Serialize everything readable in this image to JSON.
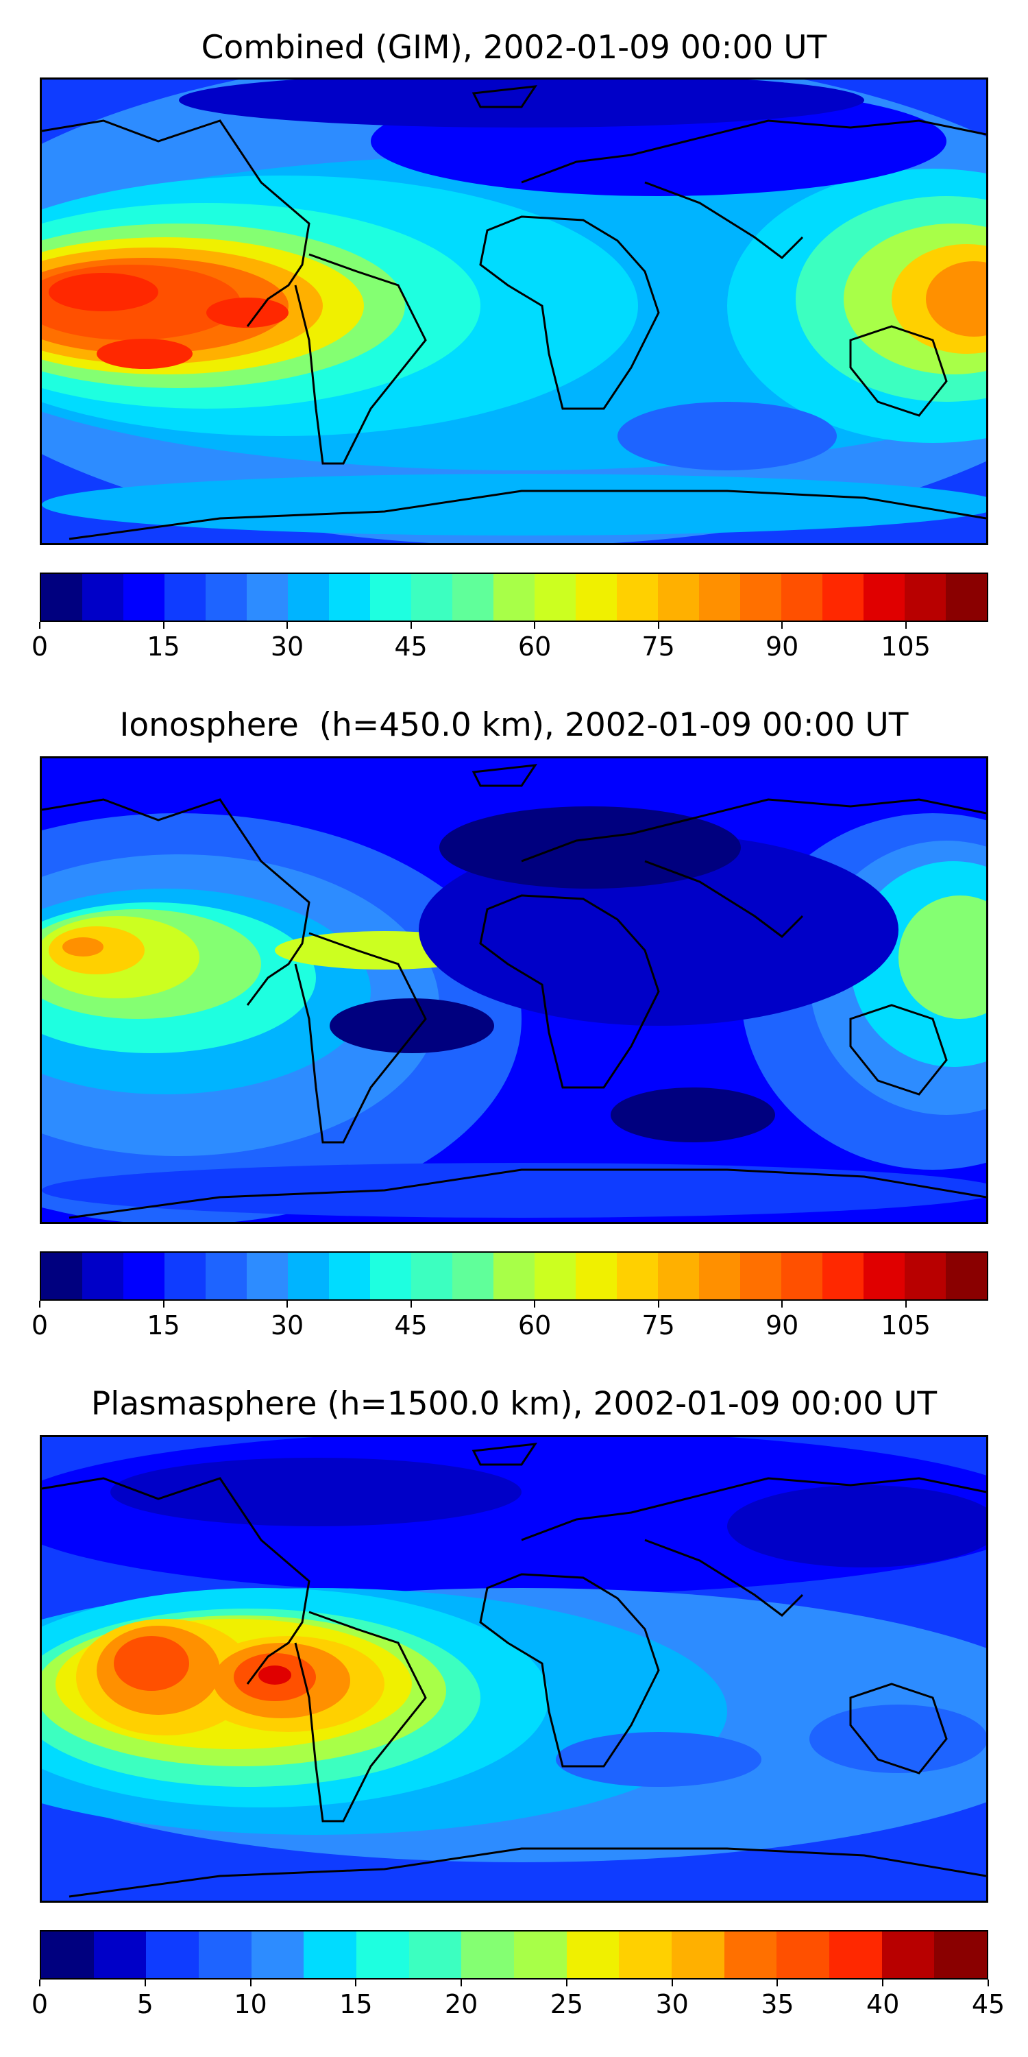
{
  "panels": [
    {
      "title": "Combined (GIM), 2002-01-09 00:00 UT",
      "colorbar": {
        "min": 0,
        "max": 115,
        "levels": 23,
        "tick_values": [
          0,
          15,
          30,
          45,
          60,
          75,
          90,
          105
        ],
        "ticks": [
          "0",
          "15",
          "30",
          "45",
          "60",
          "75",
          "90",
          "105"
        ]
      }
    },
    {
      "title": "Ionosphere  (h=450.0 km), 2002-01-09 00:00 UT",
      "colorbar": {
        "min": 0,
        "max": 115,
        "levels": 23,
        "tick_values": [
          0,
          15,
          30,
          45,
          60,
          75,
          90,
          105
        ],
        "ticks": [
          "0",
          "15",
          "30",
          "45",
          "60",
          "75",
          "90",
          "105"
        ]
      }
    },
    {
      "title": "Plasmasphere (h=1500.0 km), 2002-01-09 00:00 UT",
      "colorbar": {
        "min": 0,
        "max": 45,
        "levels": 18,
        "tick_values": [
          0,
          5,
          10,
          15,
          20,
          25,
          30,
          35,
          40,
          45
        ],
        "ticks": [
          "0",
          "5",
          "10",
          "15",
          "20",
          "25",
          "30",
          "35",
          "40",
          "45"
        ]
      }
    }
  ],
  "colormap": "jet",
  "colormap_colors": [
    "#00007f",
    "#0000c8",
    "#0000ff",
    "#0f3cff",
    "#1e64ff",
    "#2d8cff",
    "#00b4ff",
    "#00dcff",
    "#1effe0",
    "#3cffc0",
    "#60ff9a",
    "#84ff72",
    "#a8ff48",
    "#ccff20",
    "#f0f000",
    "#ffd000",
    "#ffb000",
    "#ff9000",
    "#ff7000",
    "#ff5000",
    "#ff2800",
    "#e00000",
    "#b80000",
    "#8a0000"
  ]
}
